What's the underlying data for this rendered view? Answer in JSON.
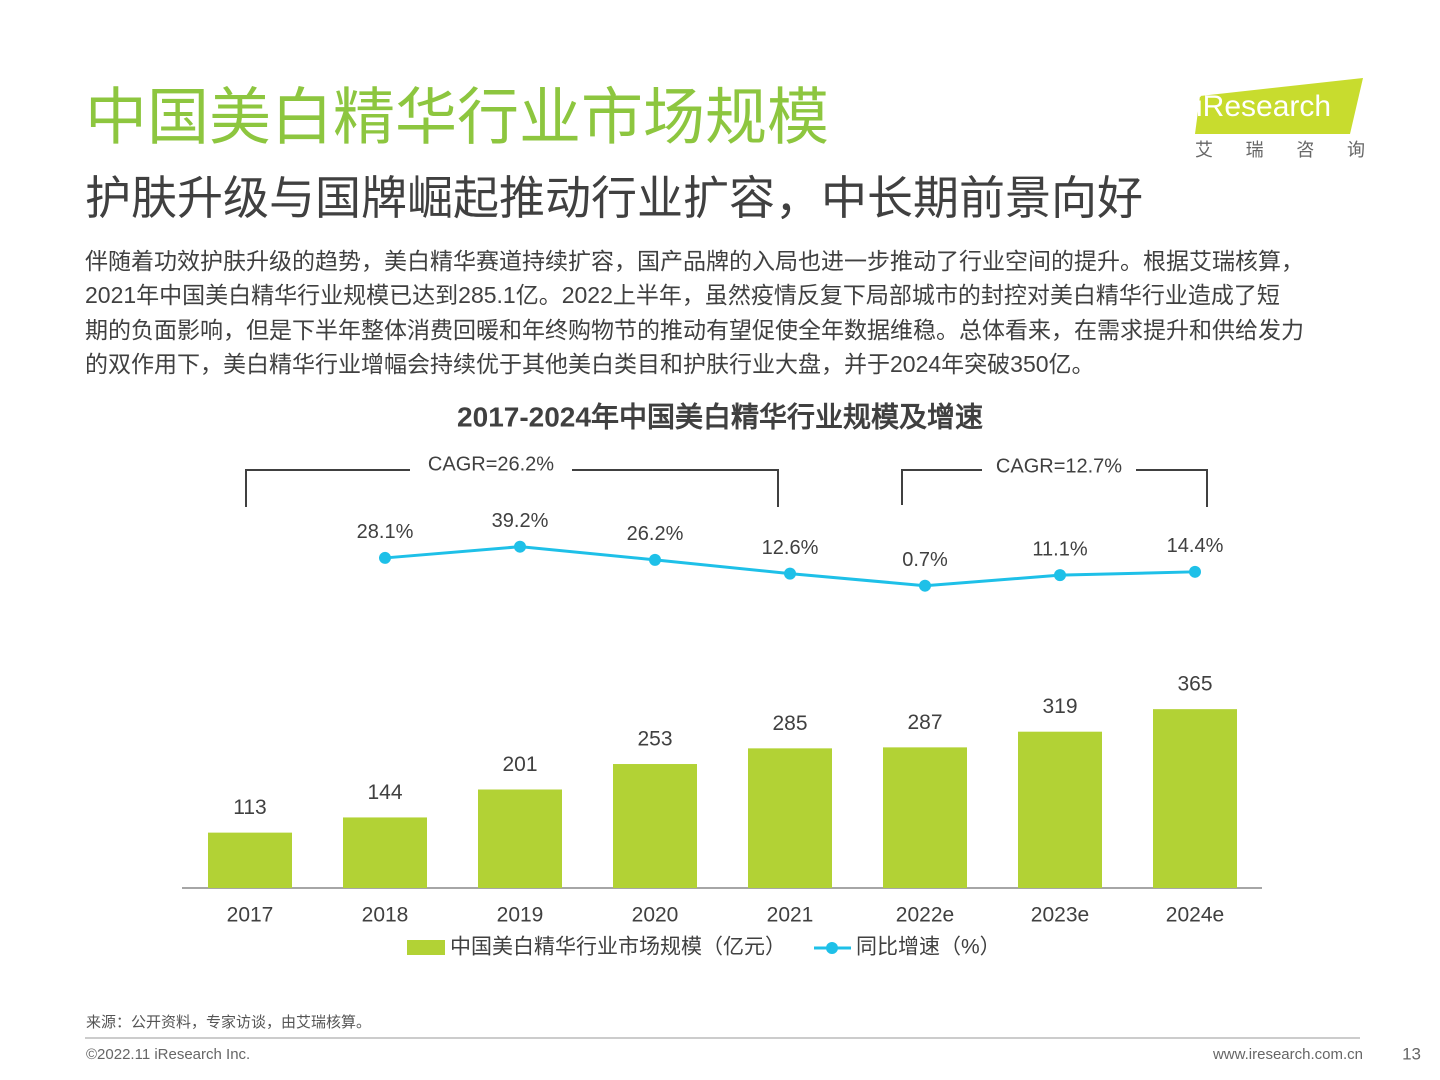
{
  "header": {
    "title": "中国美白精华行业市场规模",
    "subtitle": "护肤升级与国牌崛起推动行业扩容，中长期前景向好",
    "logo": "iResearch",
    "logo_sub": "艾 瑞 咨 询"
  },
  "body": {
    "lines": [
      "伴随着功效护肤升级的趋势，美白精华赛道持续扩容，国产品牌的入局也进一步推动了行业空间的提升。根据艾瑞核算，",
      "2021年中国美白精华行业规模已达到285.1亿。2022上半年，虽然疫情反复下局部城市的封控对美白精华行业造成了短",
      "期的负面影响，但是下半年整体消费回暖和年终购物节的推动有望促使全年数据维稳。总体看来，在需求提升和供给发力",
      "的双作用下，美白精华行业增幅会持续优于其他美白类目和护肤行业大盘，并于2024年突破350亿。"
    ]
  },
  "chart_data": {
    "type": "bar",
    "title": "2017-2024年中国美白精华行业规模及增速",
    "annotations": [
      "CAGR=26.2%",
      "CAGR=12.7%"
    ],
    "categories": [
      "2017",
      "2018",
      "2019",
      "2020",
      "2021",
      "2022e",
      "2023e",
      "2024e"
    ],
    "series": [
      {
        "name": "中国美白精华行业市场规模（亿元）",
        "type": "bar",
        "color": "#b2d235",
        "values": [
          113,
          144,
          201,
          253,
          285,
          287,
          319,
          365
        ]
      },
      {
        "name": "同比增速（%）",
        "type": "line",
        "color": "#1ec0e8",
        "values": [
          null,
          28.1,
          39.2,
          26.2,
          12.6,
          0.7,
          11.1,
          14.4
        ],
        "value_labels": [
          null,
          "28.1%",
          "39.2%",
          "26.2%",
          "12.6%",
          "0.7%",
          "11.1%",
          "14.4%"
        ]
      }
    ],
    "legend": "bottom"
  },
  "footer": {
    "source": "来源：公开资料，专家访谈，由艾瑞核算。",
    "copyright": "©2022.11 iResearch Inc.",
    "url": "www.iresearch.com.cn",
    "page": "13"
  }
}
